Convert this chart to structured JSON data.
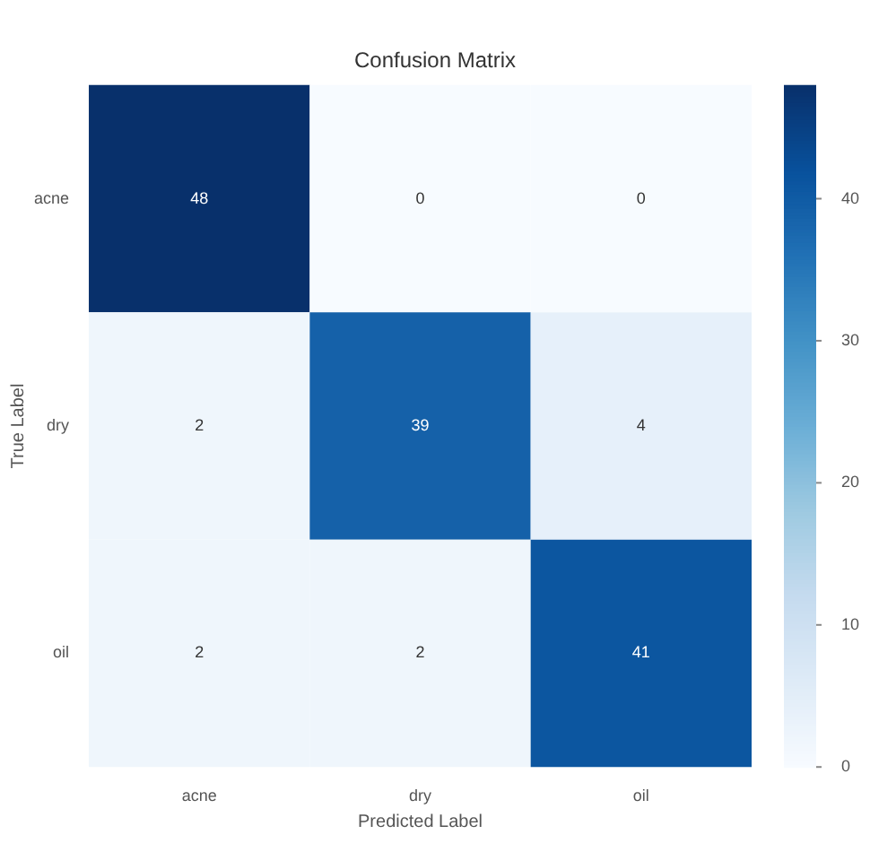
{
  "chart_data": {
    "type": "heatmap",
    "title": "Confusion Matrix",
    "xlabel": "Predicted Label",
    "ylabel": "True Label",
    "categories": [
      "acne",
      "dry",
      "oil"
    ],
    "y_categories": [
      "acne",
      "dry",
      "oil"
    ],
    "cells": [
      [
        48,
        0,
        0
      ],
      [
        2,
        39,
        4
      ],
      [
        2,
        2,
        41
      ]
    ],
    "clim": [
      0,
      48
    ],
    "cticks": [
      0,
      10,
      20,
      30,
      40
    ],
    "data_labels": true
  }
}
